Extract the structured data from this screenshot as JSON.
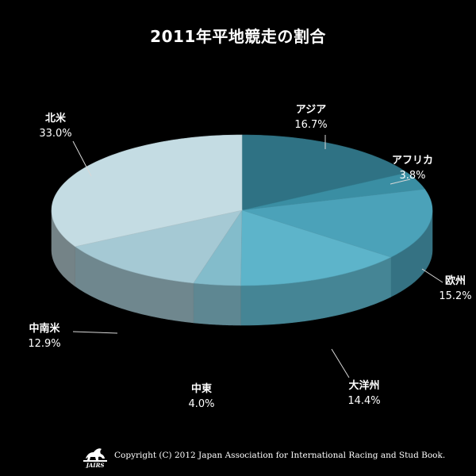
{
  "chart_data": {
    "type": "pie",
    "title": "2011年平地競走の割合",
    "categories": [
      "アジア",
      "アフリカ",
      "欧州",
      "大洋州",
      "中東",
      "中南米",
      "北米"
    ],
    "values": [
      16.7,
      3.8,
      15.2,
      14.4,
      4.0,
      12.9,
      33.0
    ],
    "value_labels": [
      "16.7%",
      "3.8%",
      "15.2%",
      "14.4%",
      "4.0%",
      "12.9%",
      "33.0%"
    ],
    "colors": [
      "#2f7284",
      "#3a8ea3",
      "#4ba2b9",
      "#5db4ca",
      "#83bccb",
      "#a5c9d4",
      "#c4dce3"
    ],
    "style": "3d",
    "legend": "none"
  },
  "footer": {
    "logo_text": "JAIRS",
    "copyright": "Copyright (C) 2012 Japan Association for International Racing and Stud Book."
  }
}
